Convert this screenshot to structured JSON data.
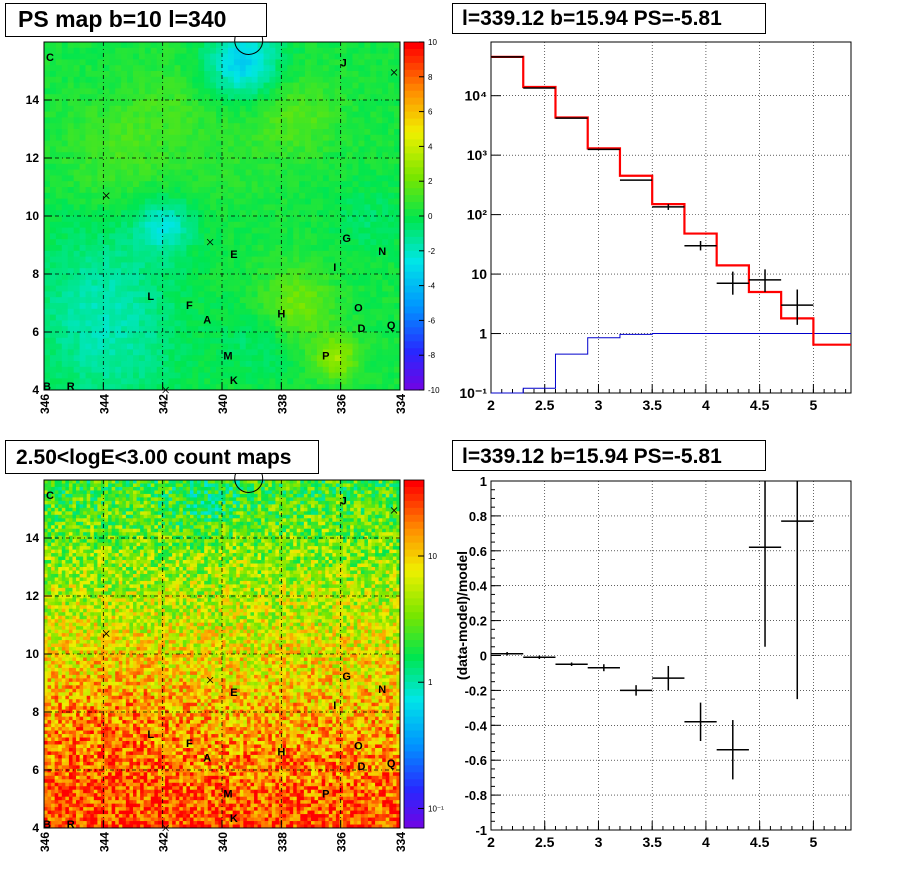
{
  "chart_data": [
    {
      "type": "heatmap",
      "title": "PS map b=10 l=340",
      "xlim": [
        346,
        334
      ],
      "ylim": [
        4,
        16
      ],
      "xticks": [
        "346",
        "344",
        "342",
        "340",
        "338",
        "336",
        "334"
      ],
      "yticks": [
        "4",
        "6",
        "8",
        "10",
        "12",
        "14"
      ],
      "colorbar": {
        "range": [
          -10,
          10
        ],
        "ticks": [
          "10",
          "8",
          "6",
          "4",
          "2",
          "0",
          "-2",
          "-4",
          "-6",
          "-8",
          "-10"
        ],
        "palette": "rainbow"
      },
      "labels": [
        {
          "text": "C",
          "l": 345.8,
          "b": 15.35
        },
        {
          "text": "J",
          "l": 335.9,
          "b": 15.15
        },
        {
          "text": "G",
          "l": 335.8,
          "b": 9.1
        },
        {
          "text": "N",
          "l": 334.6,
          "b": 8.65
        },
        {
          "text": "E",
          "l": 339.6,
          "b": 8.55
        },
        {
          "text": "I",
          "l": 336.2,
          "b": 8.1
        },
        {
          "text": "L",
          "l": 342.4,
          "b": 7.1
        },
        {
          "text": "F",
          "l": 341.1,
          "b": 6.8
        },
        {
          "text": "A",
          "l": 340.5,
          "b": 6.3
        },
        {
          "text": "H",
          "l": 338.0,
          "b": 6.5
        },
        {
          "text": "O",
          "l": 335.4,
          "b": 6.7
        },
        {
          "text": "D",
          "l": 335.3,
          "b": 6.0
        },
        {
          "text": "Q",
          "l": 334.3,
          "b": 6.1
        },
        {
          "text": "P",
          "l": 336.5,
          "b": 5.05
        },
        {
          "text": "M",
          "l": 339.8,
          "b": 5.05
        },
        {
          "text": "K",
          "l": 339.6,
          "b": 4.2
        },
        {
          "text": "R",
          "l": 345.1,
          "b": 4.0
        },
        {
          "text": "B",
          "l": 345.9,
          "b": 4.0
        }
      ],
      "crosses": [
        {
          "l": 343.9,
          "b": 10.7
        },
        {
          "l": 340.4,
          "b": 9.1
        },
        {
          "l": 334.2,
          "b": 14.95
        },
        {
          "l": 341.9,
          "b": 4.0
        }
      ],
      "circle": {
        "l": 339.1,
        "b": 15.95
      }
    },
    {
      "type": "line",
      "title": "l=339.12 b=15.94 PS=-5.81",
      "xlim": [
        2,
        5.35
      ],
      "ylog": true,
      "ylim": [
        0.1,
        80000
      ],
      "xticks": [
        "2",
        "2.5",
        "3",
        "3.5",
        "4",
        "4.5",
        "5"
      ],
      "yticks": [
        {
          "v": 0.1,
          "text": "10⁻¹"
        },
        {
          "v": 1,
          "text": "1"
        },
        {
          "v": 10,
          "text": "10"
        },
        {
          "v": 100,
          "text": "10²"
        },
        {
          "v": 1000,
          "text": "10³"
        },
        {
          "v": 10000,
          "text": "10⁴"
        }
      ],
      "grid": true,
      "model_red": {
        "edges": [
          2.0,
          2.3,
          2.6,
          2.9,
          3.2,
          3.5,
          3.8,
          4.1,
          4.4,
          4.7,
          5.0,
          5.35
        ],
        "values": [
          45000,
          14000,
          4300,
          1300,
          450,
          150,
          48,
          14,
          5,
          1.8,
          0.65
        ]
      },
      "background_blue": {
        "edges": [
          2.0,
          2.3,
          2.6,
          2.9,
          3.2,
          3.5,
          3.8,
          4.1,
          4.4,
          4.7,
          5.0,
          5.35
        ],
        "values": [
          0.1,
          0.12,
          0.45,
          0.85,
          0.97,
          1.0,
          1.0,
          1.0,
          1.0,
          1.0,
          1.0
        ]
      },
      "data_points": [
        {
          "x": 2.15,
          "y": 45000,
          "xerr": 0.15,
          "ylo": 45000,
          "yhi": 45000
        },
        {
          "x": 2.45,
          "y": 13500,
          "xerr": 0.15,
          "ylo": 13500,
          "yhi": 13500
        },
        {
          "x": 2.75,
          "y": 4200,
          "xerr": 0.15,
          "ylo": 4200,
          "yhi": 4200
        },
        {
          "x": 3.05,
          "y": 1250,
          "xerr": 0.15,
          "ylo": 1250,
          "yhi": 1250
        },
        {
          "x": 3.35,
          "y": 380,
          "xerr": 0.15,
          "ylo": 380,
          "yhi": 380
        },
        {
          "x": 3.65,
          "y": 135,
          "xerr": 0.15,
          "ylo": 120,
          "yhi": 150
        },
        {
          "x": 3.95,
          "y": 30,
          "xerr": 0.15,
          "ylo": 25,
          "yhi": 36
        },
        {
          "x": 4.25,
          "y": 7,
          "xerr": 0.15,
          "ylo": 4.5,
          "yhi": 11
        },
        {
          "x": 4.55,
          "y": 8,
          "xerr": 0.15,
          "ylo": 5,
          "yhi": 12
        },
        {
          "x": 4.85,
          "y": 3,
          "xerr": 0.15,
          "ylo": 1.4,
          "yhi": 5.5
        }
      ]
    },
    {
      "type": "heatmap",
      "title": "2.50<logE<3.00 count maps",
      "xlim": [
        346,
        334
      ],
      "ylim": [
        4,
        16
      ],
      "xticks": [
        "346",
        "344",
        "342",
        "340",
        "338",
        "336",
        "334"
      ],
      "yticks": [
        "4",
        "6",
        "8",
        "10",
        "12",
        "14"
      ],
      "colorbar": {
        "log": true,
        "ticks": [
          {
            "v": 10,
            "text": "10"
          },
          {
            "v": 1,
            "text": "1"
          },
          {
            "v": 0.1,
            "text": "10⁻¹"
          }
        ],
        "palette": "rainbow"
      },
      "labels": [
        {
          "text": "C",
          "l": 345.8,
          "b": 15.35
        },
        {
          "text": "J",
          "l": 335.9,
          "b": 15.15
        },
        {
          "text": "G",
          "l": 335.8,
          "b": 9.1
        },
        {
          "text": "N",
          "l": 334.6,
          "b": 8.65
        },
        {
          "text": "E",
          "l": 339.6,
          "b": 8.55
        },
        {
          "text": "I",
          "l": 336.2,
          "b": 8.1
        },
        {
          "text": "L",
          "l": 342.4,
          "b": 7.1
        },
        {
          "text": "F",
          "l": 341.1,
          "b": 6.8
        },
        {
          "text": "A",
          "l": 340.5,
          "b": 6.3
        },
        {
          "text": "H",
          "l": 338.0,
          "b": 6.5
        },
        {
          "text": "O",
          "l": 335.4,
          "b": 6.7
        },
        {
          "text": "D",
          "l": 335.3,
          "b": 6.0
        },
        {
          "text": "Q",
          "l": 334.3,
          "b": 6.1
        },
        {
          "text": "P",
          "l": 336.5,
          "b": 5.05
        },
        {
          "text": "M",
          "l": 339.8,
          "b": 5.05
        },
        {
          "text": "K",
          "l": 339.6,
          "b": 4.2
        },
        {
          "text": "R",
          "l": 345.1,
          "b": 4.0
        },
        {
          "text": "B",
          "l": 345.9,
          "b": 4.0
        }
      ],
      "crosses": [
        {
          "l": 343.9,
          "b": 10.7
        },
        {
          "l": 340.4,
          "b": 9.1
        },
        {
          "l": 334.2,
          "b": 14.95
        },
        {
          "l": 341.9,
          "b": 4.0
        }
      ],
      "circle": {
        "l": 339.1,
        "b": 15.95
      }
    },
    {
      "type": "scatter",
      "title": "l=339.12 b=15.94 PS=-5.81",
      "xlim": [
        2,
        5.35
      ],
      "ylim": [
        -1,
        1
      ],
      "ylabel": "(data-model)/model",
      "xticks": [
        "2",
        "2.5",
        "3",
        "3.5",
        "4",
        "4.5",
        "5"
      ],
      "yticks": [
        "-1",
        "-0.8",
        "-0.6",
        "-0.4",
        "-0.2",
        "0",
        "0.2",
        "0.4",
        "0.6",
        "0.8",
        "1"
      ],
      "grid": true,
      "data_points": [
        {
          "x": 2.15,
          "y": 0.01,
          "xerr": 0.15,
          "yerr": 0.01
        },
        {
          "x": 2.45,
          "y": -0.01,
          "xerr": 0.15,
          "yerr": 0.01
        },
        {
          "x": 2.75,
          "y": -0.05,
          "xerr": 0.15,
          "yerr": 0.01
        },
        {
          "x": 3.05,
          "y": -0.07,
          "xerr": 0.15,
          "yerr": 0.02
        },
        {
          "x": 3.35,
          "y": -0.2,
          "xerr": 0.15,
          "yerr": 0.03
        },
        {
          "x": 3.65,
          "y": -0.13,
          "xerr": 0.15,
          "yerr": 0.07
        },
        {
          "x": 3.95,
          "y": -0.38,
          "xerr": 0.15,
          "yerr": 0.11
        },
        {
          "x": 4.25,
          "y": -0.54,
          "xerr": 0.15,
          "yerr": 0.17
        },
        {
          "x": 4.55,
          "y": 0.62,
          "xerr": 0.15,
          "yerr": 0.57
        },
        {
          "x": 4.85,
          "y": 0.77,
          "xerr": 0.15,
          "yerr": 1.02
        }
      ]
    }
  ]
}
